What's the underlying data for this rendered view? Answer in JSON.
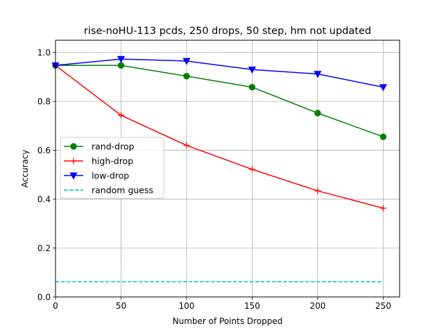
{
  "chart_data": {
    "type": "line",
    "title": "rise-noHU-113 pcds, 250 drops, 50 step, hm not updated",
    "xlabel": "Number of Points Dropped",
    "ylabel": "Accuracy",
    "xlim": [
      0,
      262.5
    ],
    "ylim": [
      0,
      1.05
    ],
    "xticks": [
      0,
      50,
      100,
      150,
      200,
      250
    ],
    "yticks": [
      0.0,
      0.2,
      0.4,
      0.6,
      0.8,
      1.0
    ],
    "ytick_labels": [
      "0.0",
      "0.2",
      "0.4",
      "0.6",
      "0.8",
      "1.0"
    ],
    "grid": true,
    "legend_position": "center-left",
    "x": [
      0,
      50,
      100,
      150,
      200,
      250
    ],
    "series": [
      {
        "name": "rand-drop",
        "values": [
          0.947,
          0.947,
          0.903,
          0.858,
          0.752,
          0.655
        ],
        "color": "#008000",
        "marker": "circle",
        "style": "solid"
      },
      {
        "name": "high-drop",
        "values": [
          0.947,
          0.743,
          0.62,
          0.522,
          0.434,
          0.363
        ],
        "color": "#ff0000",
        "marker": "plus",
        "style": "solid"
      },
      {
        "name": "low-drop",
        "values": [
          0.947,
          0.973,
          0.965,
          0.93,
          0.912,
          0.858
        ],
        "color": "#0000ff",
        "marker": "triangle-down",
        "style": "solid"
      },
      {
        "name": "random guess",
        "values": [
          0.0625,
          0.0625
        ],
        "x": [
          0,
          250
        ],
        "color": "#00bfbf",
        "marker": "none",
        "style": "dashed"
      }
    ]
  }
}
